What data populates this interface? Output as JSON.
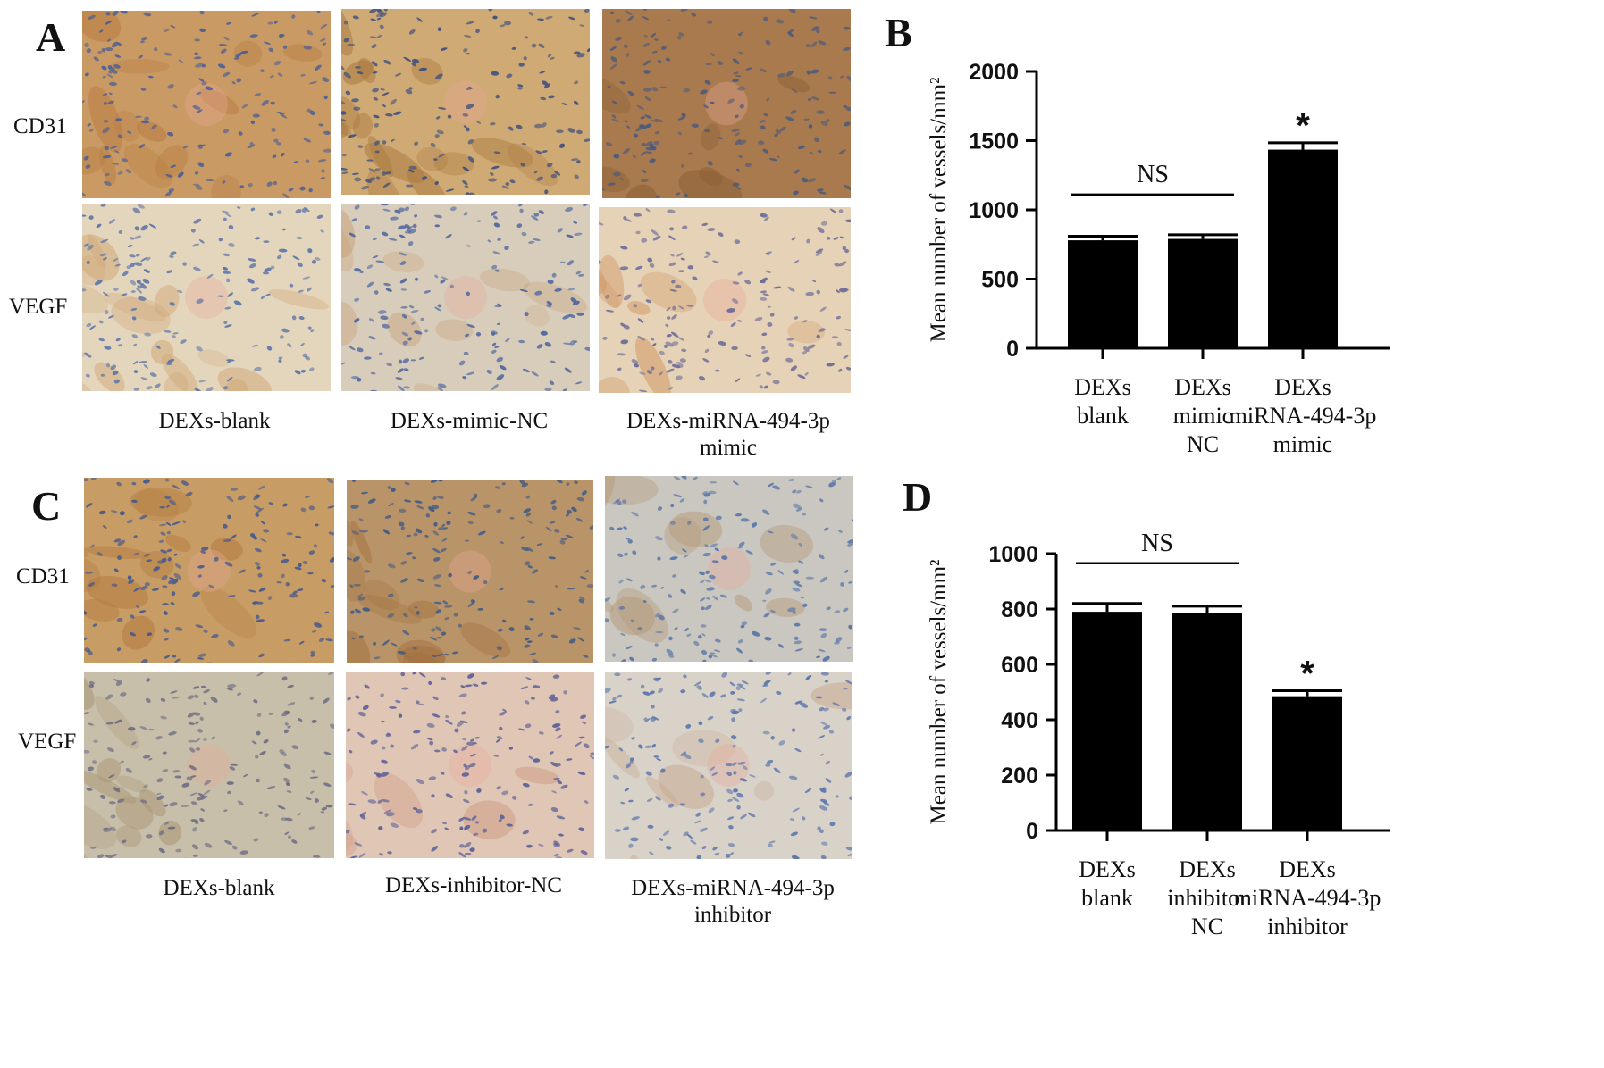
{
  "panels": {
    "A": {
      "letter": "A",
      "row_labels": [
        "CD31",
        "VEGF"
      ],
      "captions": [
        "DEXs-blank",
        "DEXs-mimic-NC",
        "DEXs-miRNA-494-3p",
        "mimic"
      ]
    },
    "B": {
      "letter": "B"
    },
    "C": {
      "letter": "C",
      "row_labels": [
        "CD31",
        "VEGF"
      ],
      "captions": [
        "DEXs-blank",
        "DEXs-inhibitor-NC",
        "DEXs-miRNA-494-3p",
        "inhibitor"
      ]
    },
    "D": {
      "letter": "D"
    }
  },
  "micrographs": {
    "A": [
      {
        "base": "#c99a63",
        "cells": "#4a5f97",
        "tone": "#b5773e"
      },
      {
        "base": "#cfaa74",
        "cells": "#3f4f7f",
        "tone": "#a9783e"
      },
      {
        "base": "#a87a4e",
        "cells": "#4b5a7d",
        "tone": "#8d5f35"
      },
      {
        "base": "#e4d6bd",
        "cells": "#5a73a7",
        "tone": "#d0a878"
      },
      {
        "base": "#d8cdbb",
        "cells": "#4d65a0",
        "tone": "#c7a17a"
      },
      {
        "base": "#e6d2b6",
        "cells": "#6a6a98",
        "tone": "#d19a68"
      }
    ],
    "C": [
      {
        "base": "#c79c65",
        "cells": "#43578f",
        "tone": "#b3793f"
      },
      {
        "base": "#b99468",
        "cells": "#3f5a86",
        "tone": "#a2703f"
      },
      {
        "base": "#c9c7c0",
        "cells": "#5874a8",
        "tone": "#b69a7a"
      },
      {
        "base": "#c7bfa9",
        "cells": "#6d6c84",
        "tone": "#a99473"
      },
      {
        "base": "#e0c6b5",
        "cells": "#5a5e98",
        "tone": "#cf9d86"
      },
      {
        "base": "#d8d2c8",
        "cells": "#5a74ab",
        "tone": "#c9a98f"
      }
    ]
  },
  "chart_data": [
    {
      "type": "bar",
      "categories": [
        "DEXs blank",
        "DEXs mimic NC",
        "DEXs miRNA-494-3p mimic"
      ],
      "category_lines": [
        [
          "DEXs",
          "blank"
        ],
        [
          "DEXs",
          "mimic",
          "NC"
        ],
        [
          "DEXs",
          "miRNA-494-3p",
          "mimic"
        ]
      ],
      "values": [
        780,
        790,
        1435
      ],
      "errors": [
        30,
        30,
        50
      ],
      "ylabel": "Mean number of vessels/mm²",
      "ylim": [
        0,
        2000
      ],
      "yticks": [
        0,
        500,
        1000,
        1500,
        2000
      ],
      "annotations": [
        {
          "text": "NS",
          "between": [
            0,
            1
          ]
        },
        {
          "text": "*",
          "bar": 2
        }
      ],
      "bar_color": "#000000"
    },
    {
      "type": "bar",
      "categories": [
        "DEXs blank",
        "DEXs inhibitor NC",
        "DEXs miRNA-494-3p inhibitor"
      ],
      "category_lines": [
        [
          "DEXs",
          "blank"
        ],
        [
          "DEXs",
          "inhibitor",
          "NC"
        ],
        [
          "DEXs",
          "miRNA-494-3p",
          "inhibitor"
        ]
      ],
      "values": [
        790,
        785,
        485
      ],
      "errors": [
        30,
        25,
        20
      ],
      "ylabel": "Mean number of vessels/mm²",
      "ylim": [
        0,
        1000
      ],
      "yticks": [
        0,
        200,
        400,
        600,
        800,
        1000
      ],
      "annotations": [
        {
          "text": "NS",
          "between": [
            0,
            1
          ]
        },
        {
          "text": "*",
          "bar": 2
        }
      ],
      "bar_color": "#000000"
    }
  ]
}
